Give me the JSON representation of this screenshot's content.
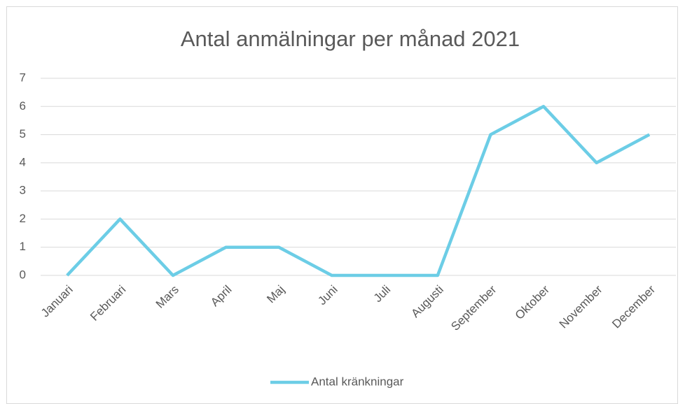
{
  "chart_data": {
    "type": "line",
    "title": "Antal anmälningar per månad 2021",
    "categories": [
      "Januari",
      "Februari",
      "Mars",
      "April",
      "Maj",
      "Juni",
      "Juli",
      "Augusti",
      "September",
      "Oktober",
      "November",
      "December"
    ],
    "series": [
      {
        "name": "Antal kränkningar",
        "color": "#6ccde6",
        "values": [
          0,
          2,
          0,
          1,
          1,
          0,
          0,
          0,
          5,
          6,
          4,
          5
        ]
      }
    ],
    "ylim": [
      0,
      7
    ],
    "yticks": [
      0,
      1,
      2,
      3,
      4,
      5,
      6,
      7
    ],
    "grid": true,
    "legend": "bottom"
  }
}
